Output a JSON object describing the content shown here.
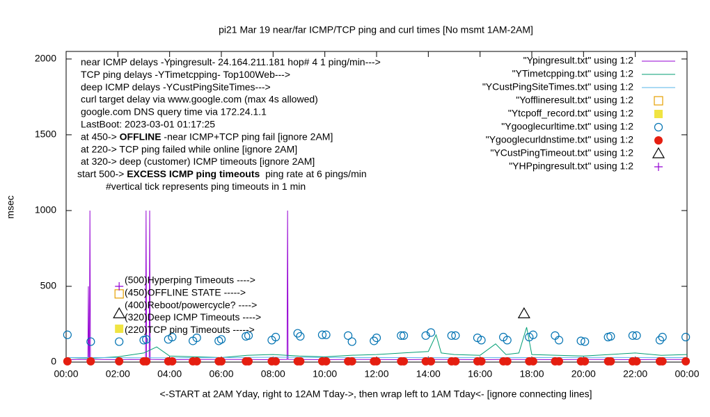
{
  "chart_data": {
    "type": "line",
    "title": "pi21 Mar 19  near/far ICMP/TCP ping and curl times [No msmt 1AM-2AM]",
    "y_label": "msec",
    "x_label": "<-START at 2AM Yday, right to 12AM Tday->, then wrap left to 1AM Tday<- [ignore connecting lines]",
    "xlim": [
      0,
      24
    ],
    "ylim": [
      0,
      2050
    ],
    "xticks": [
      {
        "value": 0,
        "label": "00:00"
      },
      {
        "value": 2,
        "label": "02:00"
      },
      {
        "value": 4,
        "label": "04:00"
      },
      {
        "value": 6,
        "label": "06:00"
      },
      {
        "value": 8,
        "label": "08:00"
      },
      {
        "value": 10,
        "label": "10:00"
      },
      {
        "value": 12,
        "label": "12:00"
      },
      {
        "value": 14,
        "label": "14:00"
      },
      {
        "value": 16,
        "label": "16:00"
      },
      {
        "value": 18,
        "label": "18:00"
      },
      {
        "value": 20,
        "label": "20:00"
      },
      {
        "value": 22,
        "label": "22:00"
      },
      {
        "value": 24,
        "label": "00:00"
      }
    ],
    "yticks": [
      0,
      500,
      1000,
      1500,
      2000
    ],
    "legend": "top-right",
    "annotations": [
      {
        "text": "near ICMP delays -Ypingresult- 24.164.211.181 hop# 4 1 ping/min--->"
      },
      {
        "text": "TCP ping delays -YTimetcpping- Top100Web--->"
      },
      {
        "text": "deep ICMP delays -YCustPingSiteTimes--->"
      },
      {
        "text": "curl target delay via www.google.com (max 4s allowed)"
      },
      {
        "text": "google.com DNS query time via 172.24.1.1"
      },
      {
        "text": "LastBoot: 2023-03-01 01:17:25"
      },
      {
        "text": "at 450-> ",
        "bold": "OFFLINE",
        "rest": " -near ICMP+TCP ping fail [ignore 2AM]"
      },
      {
        "text": "at 220-> TCP ping failed while online [ignore 2AM]"
      },
      {
        "text": "at 320-> deep (customer) ICMP timeouts [ignore 2AM]"
      },
      {
        "text": "start 500-> ",
        "bold": "EXCESS ICMP ping timeouts",
        "rest": "  ping rate at 6 pings/min"
      },
      {
        "text": "#vertical tick represents ping timeouts in 1 min"
      }
    ],
    "marker_labels": [
      "(500)Hyperping Timeouts ---->",
      "(450)OFFLINE STATE ----->",
      "(400)Reboot/powercycle? ---->",
      "(320)Deep ICMP Timeouts ---->",
      "(220)TCP ping Timeouts ----->"
    ],
    "series": [
      {
        "name": "\"Ypingresult.txt\" using 1:2",
        "style": "lines",
        "color": "#9400d3",
        "x": [
          0,
          0.5,
          0.84,
          0.86,
          0.88,
          0.9,
          0.92,
          0.94,
          1.5,
          2,
          2.5,
          3,
          3.07,
          3.09,
          3.11,
          3.21,
          3.23,
          3.25,
          4,
          5,
          6,
          7,
          8,
          8.54,
          8.56,
          8.58,
          9,
          10,
          11,
          12,
          13,
          14,
          15,
          16,
          17,
          18,
          19,
          20,
          21,
          22,
          23,
          24
        ],
        "values": [
          15,
          18,
          16,
          500,
          16,
          16,
          1000,
          18,
          17,
          16,
          18,
          17,
          18,
          1000,
          18,
          17,
          1000,
          18,
          16,
          17,
          18,
          17,
          16,
          18,
          1000,
          18,
          17,
          16,
          18,
          17,
          16,
          18,
          17,
          16,
          18,
          17,
          16,
          18,
          17,
          16,
          18,
          17
        ]
      },
      {
        "name": "\"YTimetcpping.txt\" using 1:2",
        "style": "lines",
        "color": "#009e73",
        "x": [
          0,
          1,
          2,
          3,
          3.5,
          4,
          5,
          6,
          7,
          8,
          9,
          10,
          11,
          12,
          13,
          14,
          14.3,
          14.5,
          15,
          16,
          16.6,
          17,
          17.5,
          17.8,
          18,
          19,
          20,
          21,
          22,
          23,
          24
        ],
        "values": [
          30,
          25,
          35,
          60,
          100,
          40,
          35,
          30,
          45,
          50,
          40,
          35,
          45,
          50,
          60,
          70,
          180,
          60,
          50,
          45,
          120,
          50,
          60,
          230,
          50,
          45,
          40,
          50,
          60,
          45,
          50
        ]
      },
      {
        "name": "\"YCustPingSiteTimes.txt\" using 1:2",
        "style": "lines",
        "color": "#56b4e9",
        "x": [
          0,
          4,
          8,
          12,
          16,
          20,
          24
        ],
        "values": [
          30,
          28,
          32,
          30,
          29,
          31,
          30
        ]
      },
      {
        "name": "\"Yofflineresult.txt\" using 1:2",
        "style": "open-square",
        "color": "#e69f00",
        "x": [
          2.05
        ],
        "values": [
          450
        ]
      },
      {
        "name": "\"Ytcpoff_record.txt\" using 1:2",
        "style": "filled-square",
        "color": "#f0e442",
        "x": [
          2.05
        ],
        "values": [
          220
        ]
      },
      {
        "name": "\"Ygooglecurltime.txt\" using 1:2",
        "style": "open-circle",
        "color": "#0072b2",
        "x": [
          0.05,
          0.95,
          2.05,
          3.0,
          3.1,
          3.95,
          4.1,
          4.9,
          5.05,
          5.9,
          6.0,
          6.95,
          7.05,
          7.95,
          8.1,
          8.95,
          9.05,
          9.9,
          10.05,
          10.9,
          11.05,
          11.9,
          12.0,
          12.95,
          13.05,
          13.9,
          14.1,
          14.9,
          15.05,
          15.9,
          16.05,
          16.9,
          17.05,
          17.9,
          18.05,
          18.9,
          19.05,
          19.9,
          20.05,
          20.95,
          21.05,
          21.9,
          22.05,
          22.95,
          23.05,
          23.95
        ],
        "values": [
          180,
          135,
          135,
          145,
          150,
          150,
          165,
          140,
          160,
          140,
          150,
          170,
          175,
          145,
          165,
          190,
          170,
          180,
          180,
          175,
          135,
          140,
          160,
          175,
          175,
          175,
          195,
          175,
          175,
          160,
          145,
          165,
          145,
          165,
          180,
          175,
          145,
          140,
          135,
          165,
          170,
          175,
          175,
          145,
          165,
          165
        ]
      },
      {
        "name": "\"Ygooglecurldnstime.txt\" using 1:2",
        "style": "filled-circle",
        "color": "#e51e10",
        "x": [
          0.05,
          0.95,
          2.05,
          3.0,
          3.1,
          3.95,
          4.1,
          4.9,
          5.05,
          5.9,
          6.0,
          6.95,
          7.05,
          7.95,
          8.1,
          8.95,
          9.05,
          9.9,
          10.05,
          10.9,
          11.05,
          11.9,
          12.0,
          12.95,
          13.05,
          13.9,
          14.1,
          14.9,
          15.05,
          15.9,
          16.05,
          16.9,
          17.05,
          17.9,
          18.05,
          18.9,
          19.05,
          19.9,
          20.05,
          20.95,
          21.05,
          21.9,
          22.05,
          22.95,
          23.05,
          23.95
        ],
        "values": [
          5,
          5,
          5,
          5,
          5,
          5,
          5,
          5,
          5,
          5,
          5,
          5,
          5,
          5,
          5,
          5,
          5,
          5,
          5,
          5,
          5,
          5,
          5,
          5,
          5,
          5,
          5,
          5,
          5,
          5,
          5,
          5,
          5,
          5,
          5,
          5,
          5,
          5,
          5,
          5,
          5,
          5,
          5,
          5,
          5,
          5
        ]
      },
      {
        "name": "\"YCustPingTimeout.txt\" using 1:2",
        "style": "open-triangle",
        "color": "#000000",
        "x": [
          2.05,
          17.7
        ],
        "values": [
          320,
          320
        ]
      },
      {
        "name": "\"YHPpingresult.txt\" using 1:2",
        "style": "plus",
        "color": "#9400d3",
        "x": [
          2.05
        ],
        "values": [
          500
        ]
      }
    ]
  }
}
